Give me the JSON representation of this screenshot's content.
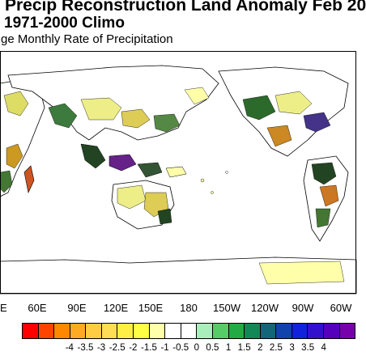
{
  "title": {
    "line1": "Precip Reconstruction Land Anomaly Feb 20",
    "line2": "1971-2000 Climo",
    "subtitle": "ge Monthly Rate of Precipitation"
  },
  "map": {
    "lon_labels": [
      "E",
      "60E",
      "90E",
      "120E",
      "150E",
      "180",
      "150W",
      "120W",
      "90W",
      "60W"
    ],
    "land_outline_color": "#000000",
    "ocean_color": "#ffffff"
  },
  "colorbar": {
    "colors": [
      "#ff0000",
      "#ff4400",
      "#ff8800",
      "#ffaa22",
      "#ffcc44",
      "#ffdd55",
      "#ffee44",
      "#ffff44",
      "#ffffaa",
      "#ffffff",
      "#ffffff",
      "#aaeebb",
      "#55cc66",
      "#22aa44",
      "#118855",
      "#116677",
      "#1144aa",
      "#1122dd",
      "#3311cc",
      "#5500bb",
      "#7700aa"
    ],
    "labels": [
      "-4",
      "-3.5",
      "-3",
      "-2.5",
      "-2",
      "-1.5",
      "-1",
      "-0.5",
      "0",
      "0.5",
      "1",
      "1.5",
      "2",
      "2.5",
      "3",
      "3.5",
      "4"
    ]
  }
}
